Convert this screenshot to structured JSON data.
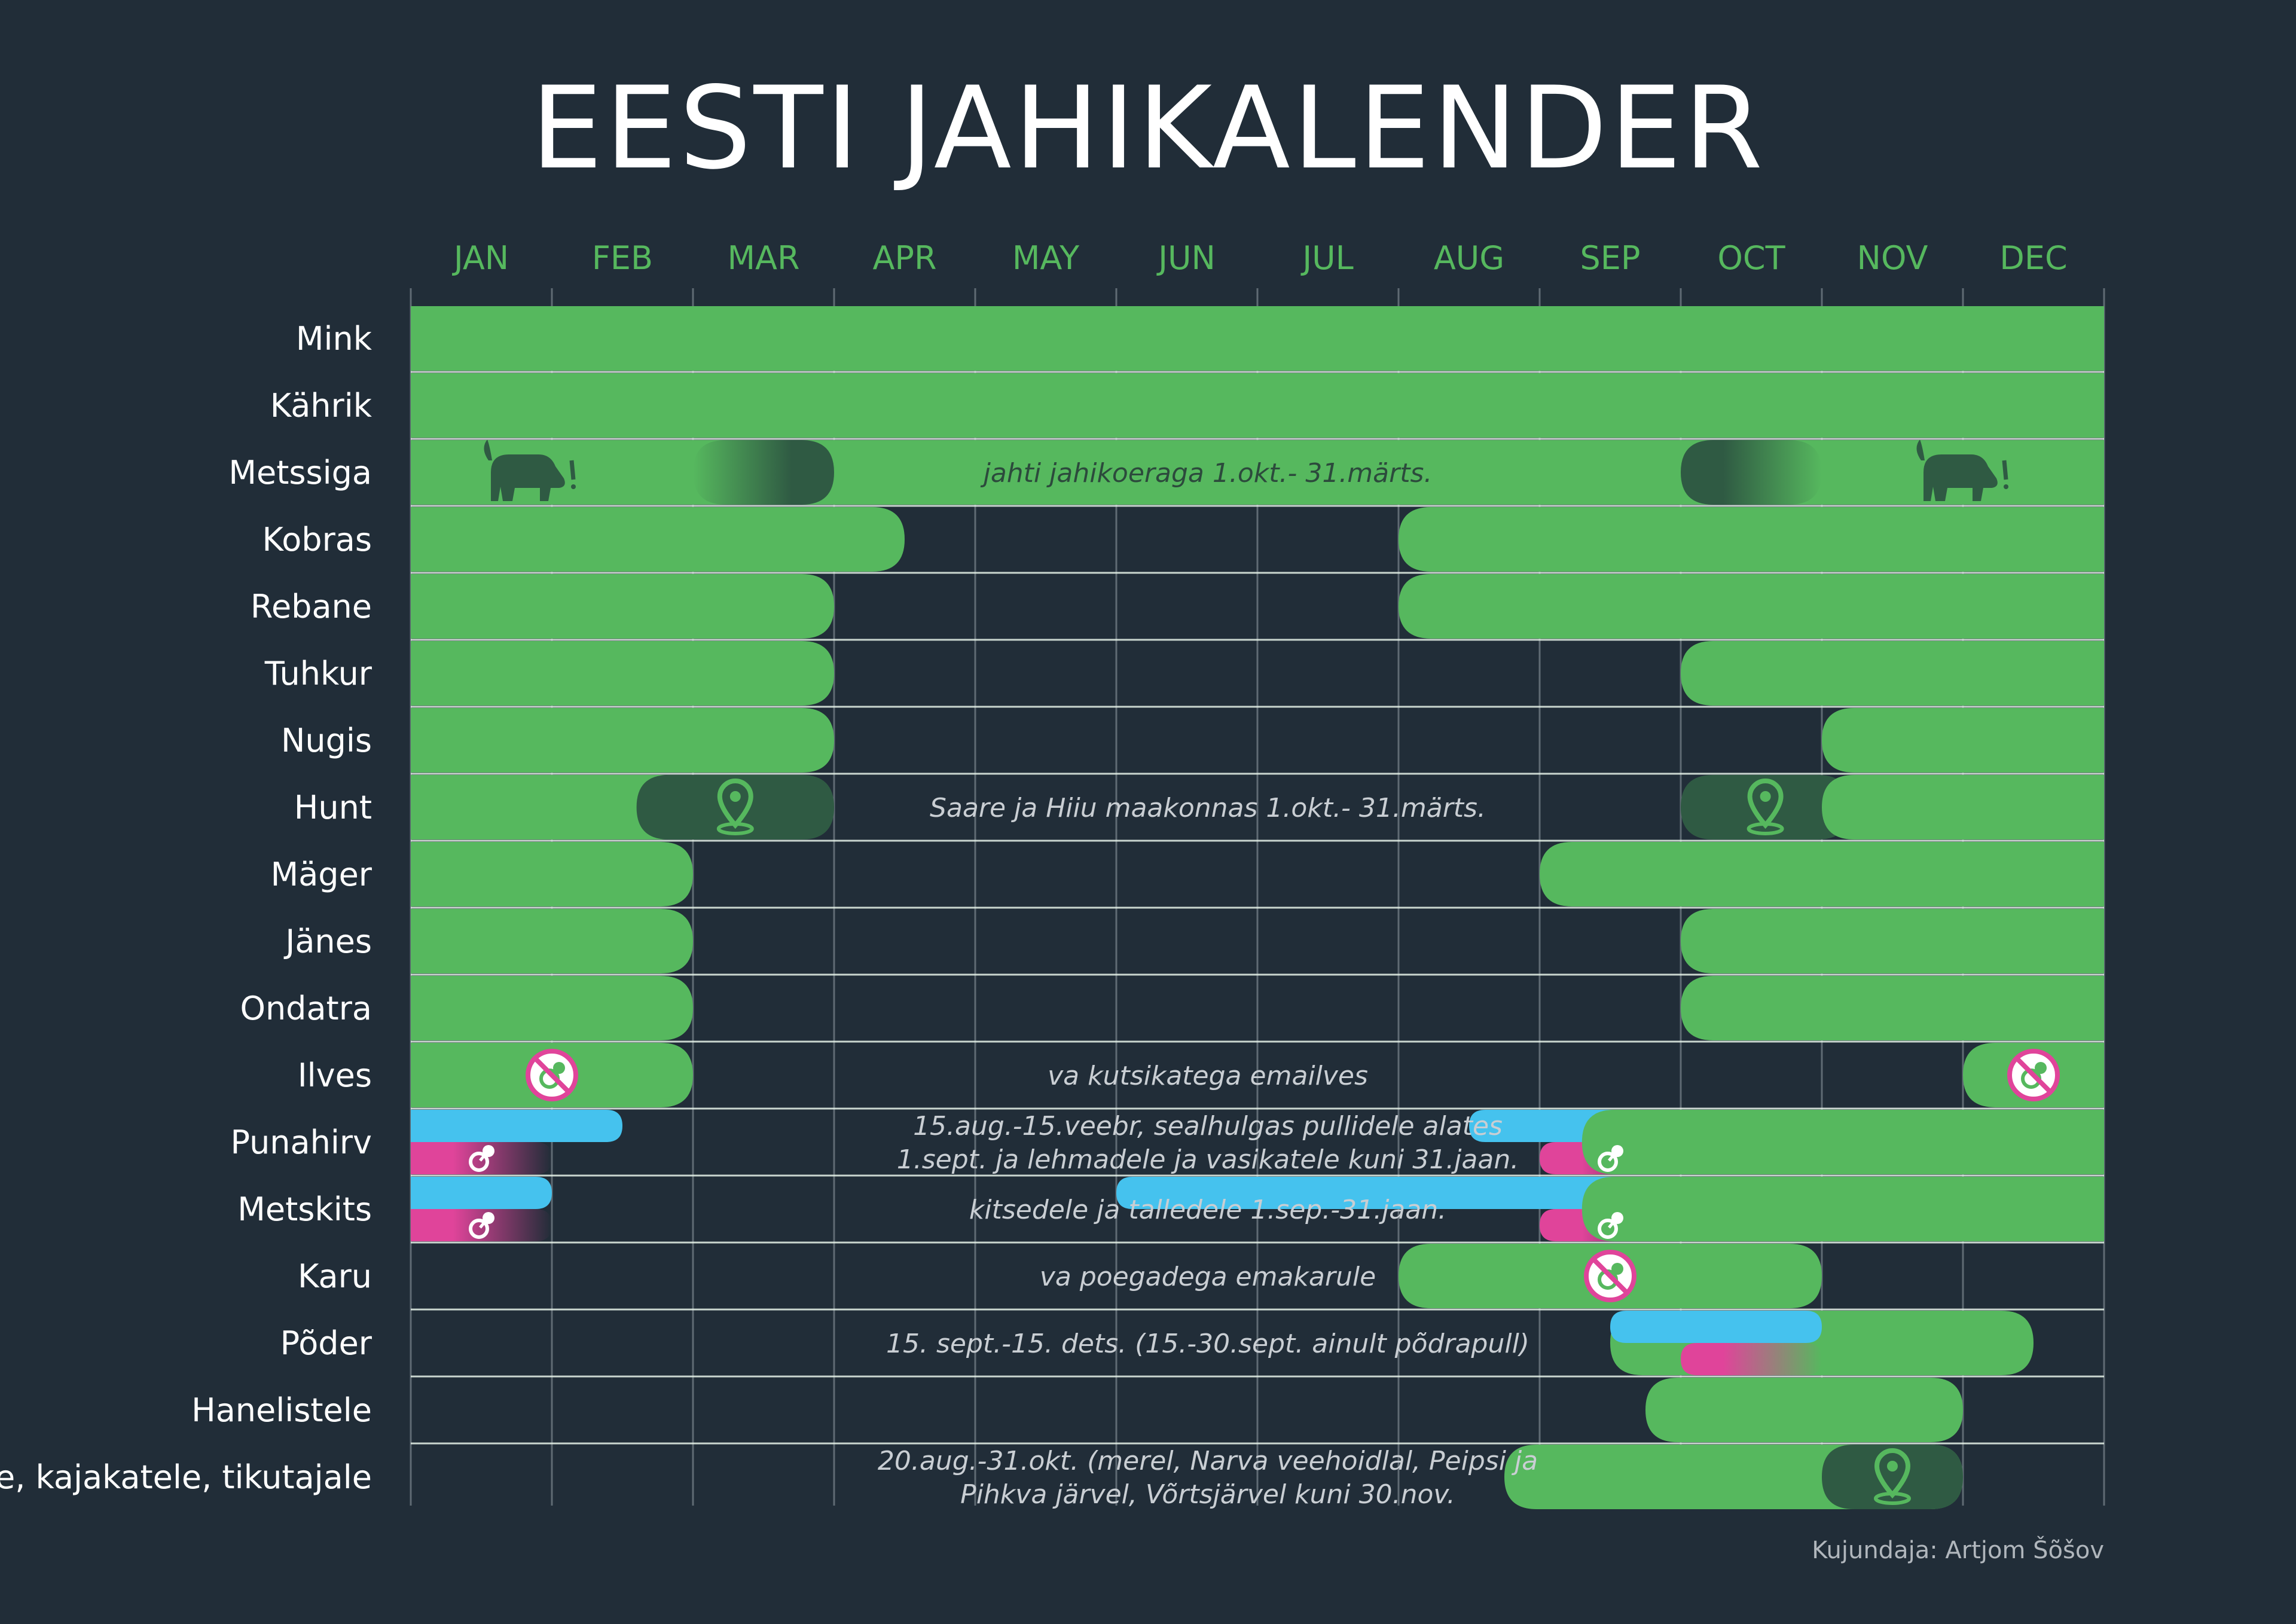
{
  "chart_data": {
    "type": "table",
    "title": "EESTI JAHIKALENDER",
    "months": [
      "JAN",
      "FEB",
      "MAR",
      "APR",
      "MAY",
      "JUN",
      "JUL",
      "AUG",
      "SEP",
      "OCT",
      "NOV",
      "DEC"
    ],
    "colors": {
      "background": "#212d38",
      "season": "#56b85e",
      "regional": "#2f5a43",
      "young": "#45c2ee",
      "female": "#e0449a",
      "grid": "#5f6a73",
      "text": "#ffffff",
      "month": "#56b85e"
    },
    "rows": [
      {
        "name": "Mink",
        "segments": [
          {
            "start": 0,
            "end": 12,
            "kind": "season"
          }
        ]
      },
      {
        "name": "Kährik",
        "segments": [
          {
            "start": 0,
            "end": 12,
            "kind": "season"
          }
        ]
      },
      {
        "name": "Metssiga",
        "segments": [
          {
            "start": 0,
            "end": 12,
            "kind": "season"
          },
          {
            "start": 2,
            "end": 3,
            "kind": "regional",
            "fade": "left",
            "icon": "dog"
          },
          {
            "start": 9,
            "end": 10,
            "kind": "regional",
            "fade": "right",
            "icon": "dog"
          }
        ],
        "note": "jahti jahikoeraga 1.okt.- 31.märts."
      },
      {
        "name": "Kobras",
        "segments": [
          {
            "start": 0,
            "end": 3.5,
            "kind": "season"
          },
          {
            "start": 7,
            "end": 12,
            "kind": "season"
          }
        ]
      },
      {
        "name": "Rebane",
        "segments": [
          {
            "start": 0,
            "end": 3,
            "kind": "season"
          },
          {
            "start": 7,
            "end": 12,
            "kind": "season"
          }
        ]
      },
      {
        "name": "Tuhkur",
        "segments": [
          {
            "start": 0,
            "end": 3,
            "kind": "season"
          },
          {
            "start": 9,
            "end": 12,
            "kind": "season"
          }
        ]
      },
      {
        "name": "Nugis",
        "segments": [
          {
            "start": 0,
            "end": 3,
            "kind": "season"
          },
          {
            "start": 10,
            "end": 12,
            "kind": "season"
          }
        ]
      },
      {
        "name": "Hunt",
        "segments": [
          {
            "start": 0,
            "end": 2,
            "kind": "season"
          },
          {
            "start": 1.6,
            "end": 3,
            "kind": "regional",
            "icon": "pin"
          },
          {
            "start": 9,
            "end": 10.2,
            "kind": "regional",
            "icon": "pin"
          },
          {
            "start": 10,
            "end": 12,
            "kind": "season"
          }
        ],
        "note": "Saare ja Hiiu maakonnas 1.okt.- 31.märts."
      },
      {
        "name": "Mäger",
        "segments": [
          {
            "start": 0,
            "end": 2,
            "kind": "season"
          },
          {
            "start": 8,
            "end": 12,
            "kind": "season"
          }
        ]
      },
      {
        "name": "Jänes",
        "segments": [
          {
            "start": 0,
            "end": 2,
            "kind": "season"
          },
          {
            "start": 9,
            "end": 12,
            "kind": "season"
          }
        ]
      },
      {
        "name": "Ondatra",
        "segments": [
          {
            "start": 0,
            "end": 2,
            "kind": "season"
          },
          {
            "start": 9,
            "end": 12,
            "kind": "season"
          }
        ]
      },
      {
        "name": "Ilves",
        "segments": [
          {
            "start": 0,
            "end": 2,
            "kind": "season",
            "icon": "no-young",
            "iconAt": 1
          },
          {
            "start": 11,
            "end": 12,
            "kind": "season",
            "icon": "no-young",
            "iconAt": 11.5
          }
        ],
        "note": "va kutsikatega emailves"
      },
      {
        "name": "Punahirv",
        "segments": [
          {
            "start": 0,
            "end": 1.5,
            "kind": "young",
            "half": "top"
          },
          {
            "start": 0,
            "end": 1,
            "kind": "female",
            "half": "bottom",
            "icon": "young"
          },
          {
            "start": 7.5,
            "end": 12,
            "kind": "young",
            "half": "top"
          },
          {
            "start": 8,
            "end": 9,
            "kind": "female",
            "half": "bottom",
            "icon": "young"
          },
          {
            "start": 8.3,
            "end": 12,
            "kind": "season"
          }
        ],
        "note": "15.aug.-15.veebr, sealhulgas pullidele alates\n1.sept. ja lehmadele ja vasikatele kuni 31.jaan."
      },
      {
        "name": "Metskits",
        "segments": [
          {
            "start": 0,
            "end": 1,
            "kind": "young",
            "half": "top"
          },
          {
            "start": 0,
            "end": 1,
            "kind": "female",
            "half": "bottom",
            "icon": "young"
          },
          {
            "start": 5,
            "end": 12,
            "kind": "young",
            "half": "top"
          },
          {
            "start": 8,
            "end": 9,
            "kind": "female",
            "half": "bottom",
            "icon": "young"
          },
          {
            "start": 8.3,
            "end": 12,
            "kind": "season"
          }
        ],
        "note": "kitsedele ja talledele 1.sep.-31.jaan."
      },
      {
        "name": "Karu",
        "segments": [
          {
            "start": 7,
            "end": 10,
            "kind": "season",
            "icon": "no-young",
            "iconAt": 8.5
          }
        ],
        "note": "va poegadega emakarule"
      },
      {
        "name": "Põder",
        "segments": [
          {
            "start": 8.5,
            "end": 11.5,
            "kind": "season"
          },
          {
            "start": 8.5,
            "end": 10,
            "kind": "young",
            "half": "top"
          },
          {
            "start": 9,
            "end": 10,
            "kind": "female",
            "half": "bottom"
          }
        ],
        "note": "15. sept.-15. dets. (15.-30.sept. ainult põdrapull)"
      },
      {
        "name": "Hanelistele",
        "segments": [
          {
            "start": 8.75,
            "end": 11,
            "kind": "season"
          }
        ]
      },
      {
        "name": "Partlastele, laugule, kajakatele, tikutajale",
        "segments": [
          {
            "start": 7.75,
            "end": 11,
            "kind": "season"
          },
          {
            "start": 10,
            "end": 11,
            "kind": "regional",
            "icon": "pin"
          }
        ],
        "note": "20.aug.-31.okt. (merel, Narva veehoidlal, Peipsi ja\nPihkva järvel, Võrtsjärvel  kuni 30.nov."
      }
    ],
    "credit": "Kujundaja: Artjom Šõšov"
  }
}
